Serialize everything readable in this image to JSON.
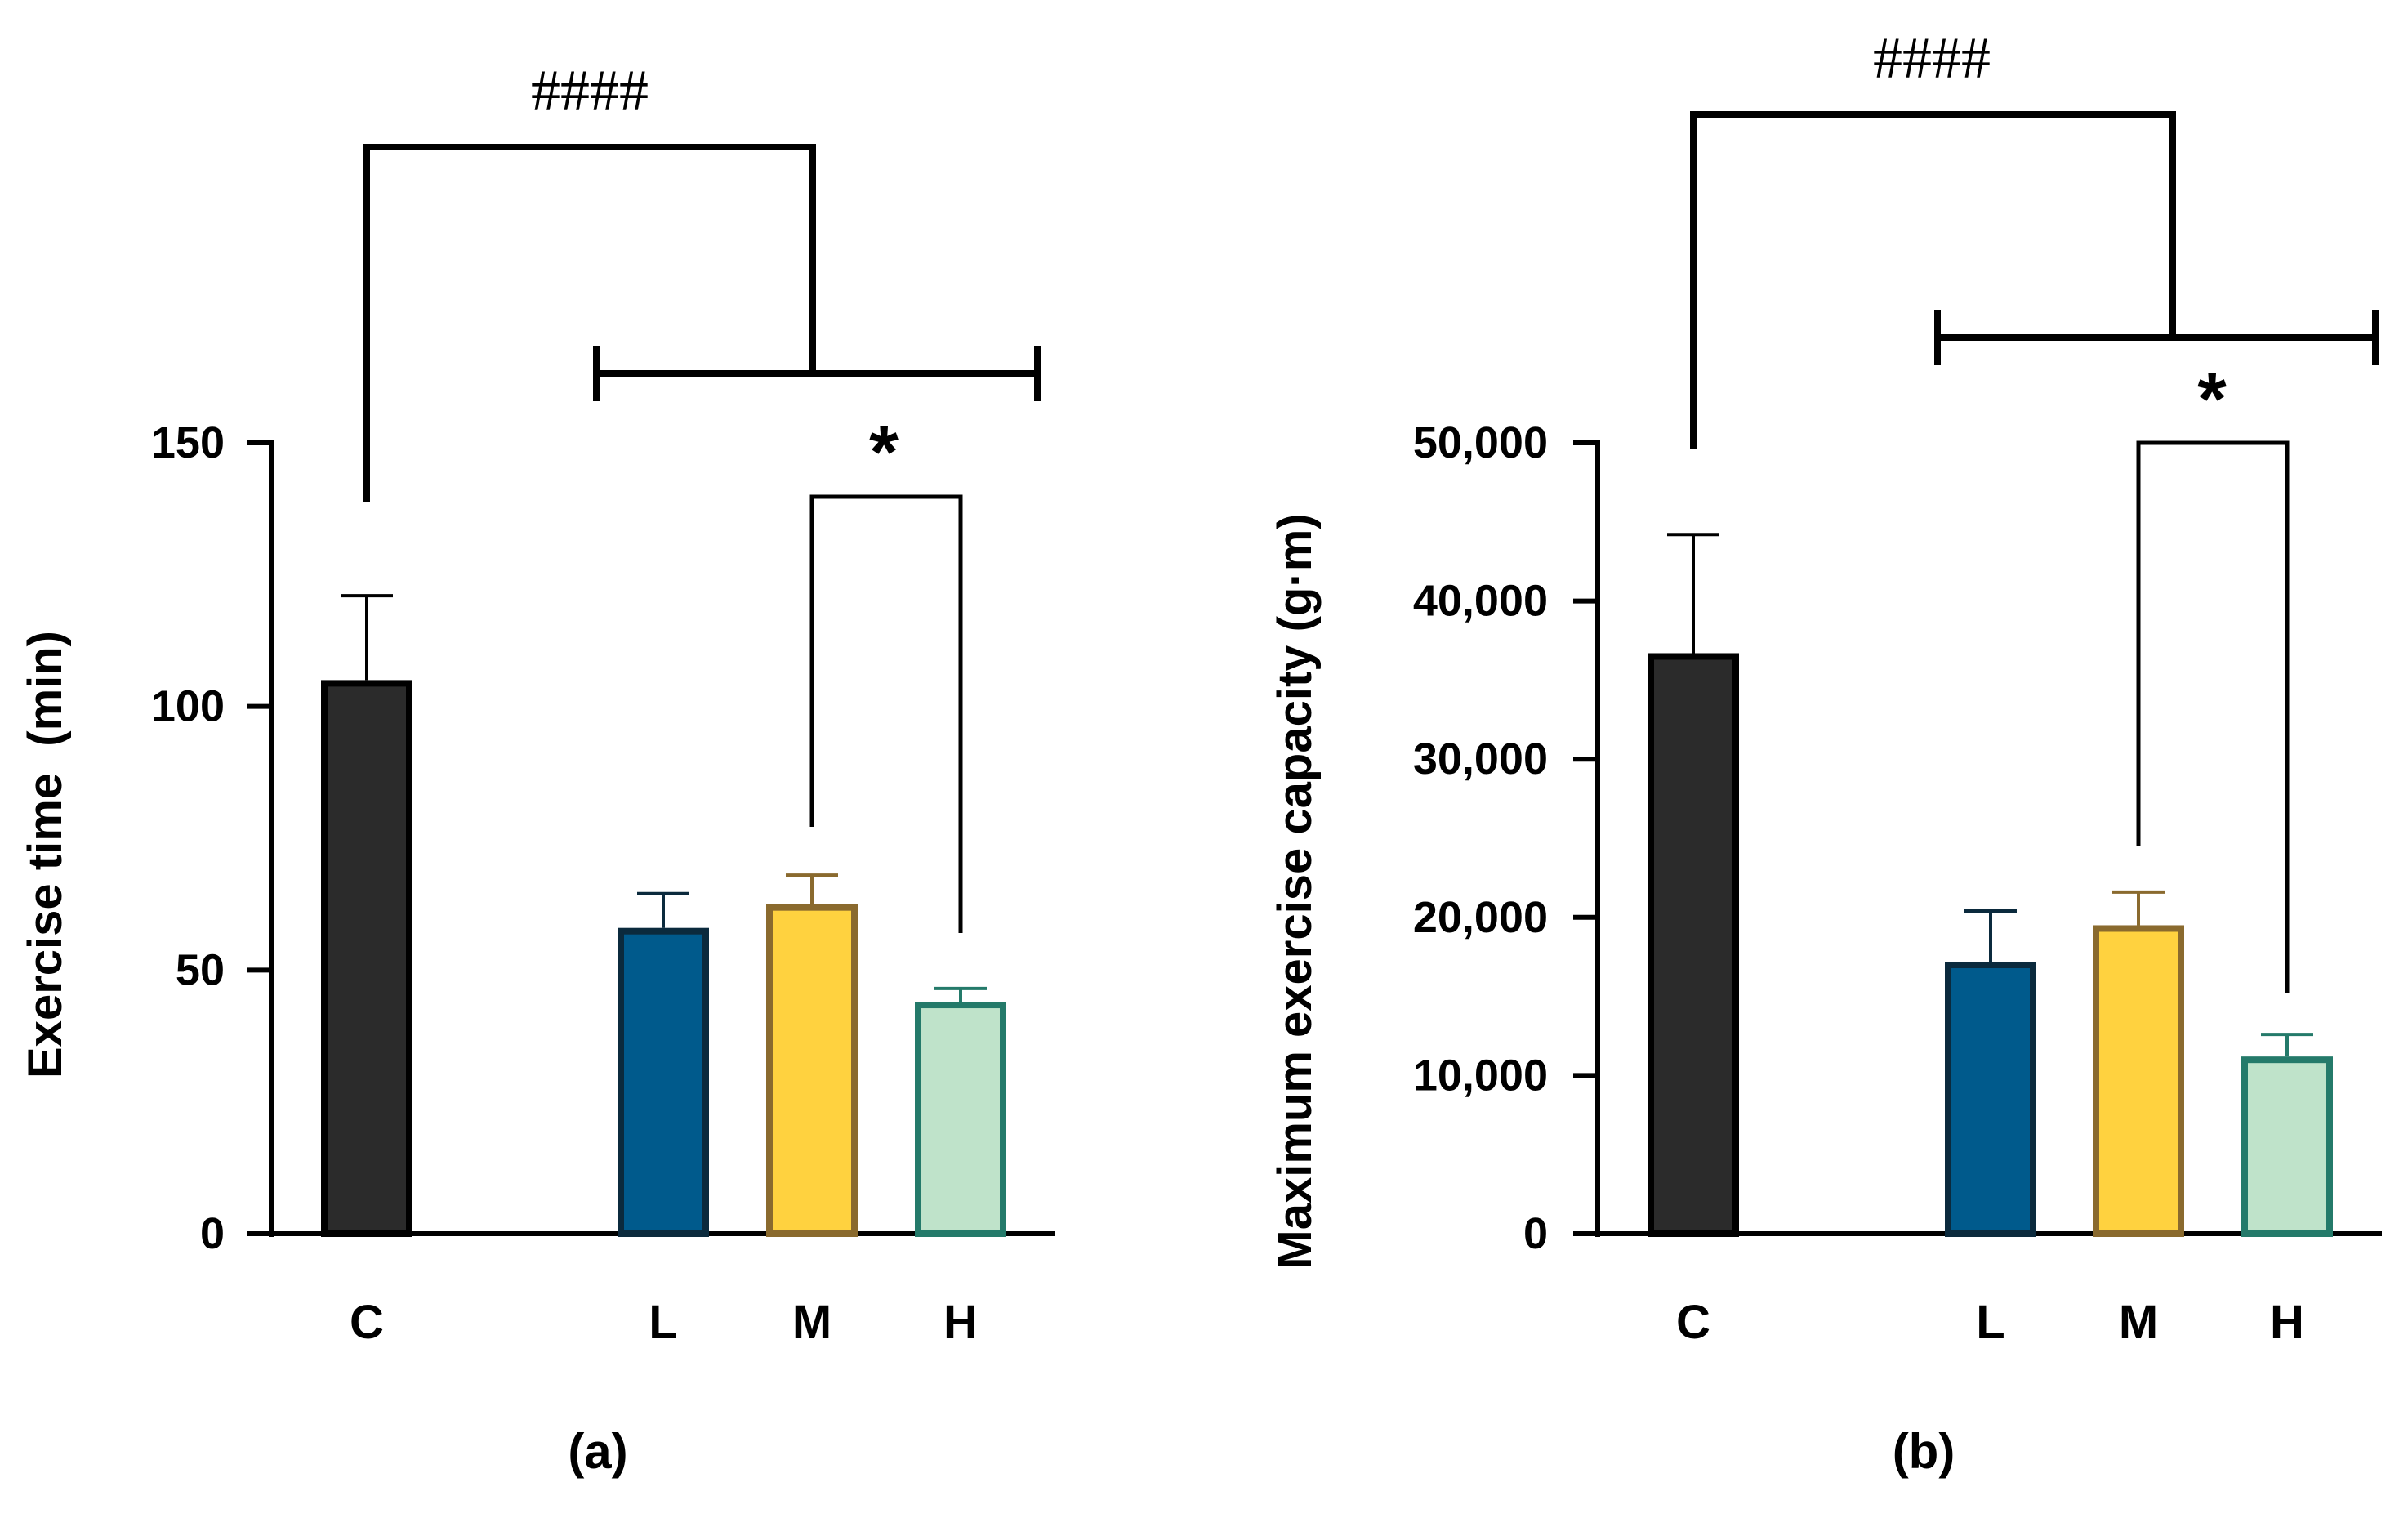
{
  "chart_data": [
    {
      "type": "bar",
      "panel_label": "(a)",
      "title": "",
      "xlabel": "",
      "ylabel": "Exercise time  (min)",
      "categories": [
        "C",
        "L",
        "M",
        "H"
      ],
      "values": [
        105,
        58,
        62.5,
        44
      ],
      "errors": [
        16,
        6.5,
        5.5,
        2.5
      ],
      "ylim": [
        0,
        150
      ],
      "yticks": [
        0,
        50,
        100,
        150
      ],
      "ytick_labels": [
        "0",
        "50",
        "100",
        "150"
      ],
      "colors": [
        "#2b2b2b",
        "#005a8c",
        "#ffd23f",
        "#bfe3ca"
      ],
      "edge_colors": [
        "#000000",
        "#0b2a3d",
        "#8a6a2e",
        "#247a6a"
      ],
      "annotations": [
        {
          "type": "group-bracket",
          "text": "####",
          "from": "C",
          "to": [
            "L",
            "H"
          ]
        },
        {
          "type": "pair-bracket",
          "text": "*",
          "from": "M",
          "to": "H"
        }
      ]
    },
    {
      "type": "bar",
      "panel_label": "(b)",
      "title": "",
      "xlabel": "",
      "ylabel": "Maximum exercise capacity (g·m)",
      "categories": [
        "C",
        "L",
        "M",
        "H"
      ],
      "values": [
        36700,
        17200,
        19500,
        11200
      ],
      "errors": [
        7500,
        3200,
        2100,
        1400
      ],
      "ylim": [
        0,
        50000
      ],
      "yticks": [
        0,
        10000,
        20000,
        30000,
        40000,
        50000
      ],
      "ytick_labels": [
        "0",
        "10,000",
        "20,000",
        "30,000",
        "40,000",
        "50,000"
      ],
      "colors": [
        "#2b2b2b",
        "#005a8c",
        "#ffd23f",
        "#bfe3ca"
      ],
      "edge_colors": [
        "#000000",
        "#0b2a3d",
        "#8a6a2e",
        "#247a6a"
      ],
      "annotations": [
        {
          "type": "group-bracket",
          "text": "####",
          "from": "C",
          "to": [
            "L",
            "H"
          ]
        },
        {
          "type": "pair-bracket",
          "text": "*",
          "from": "M",
          "to": "H"
        }
      ]
    }
  ]
}
